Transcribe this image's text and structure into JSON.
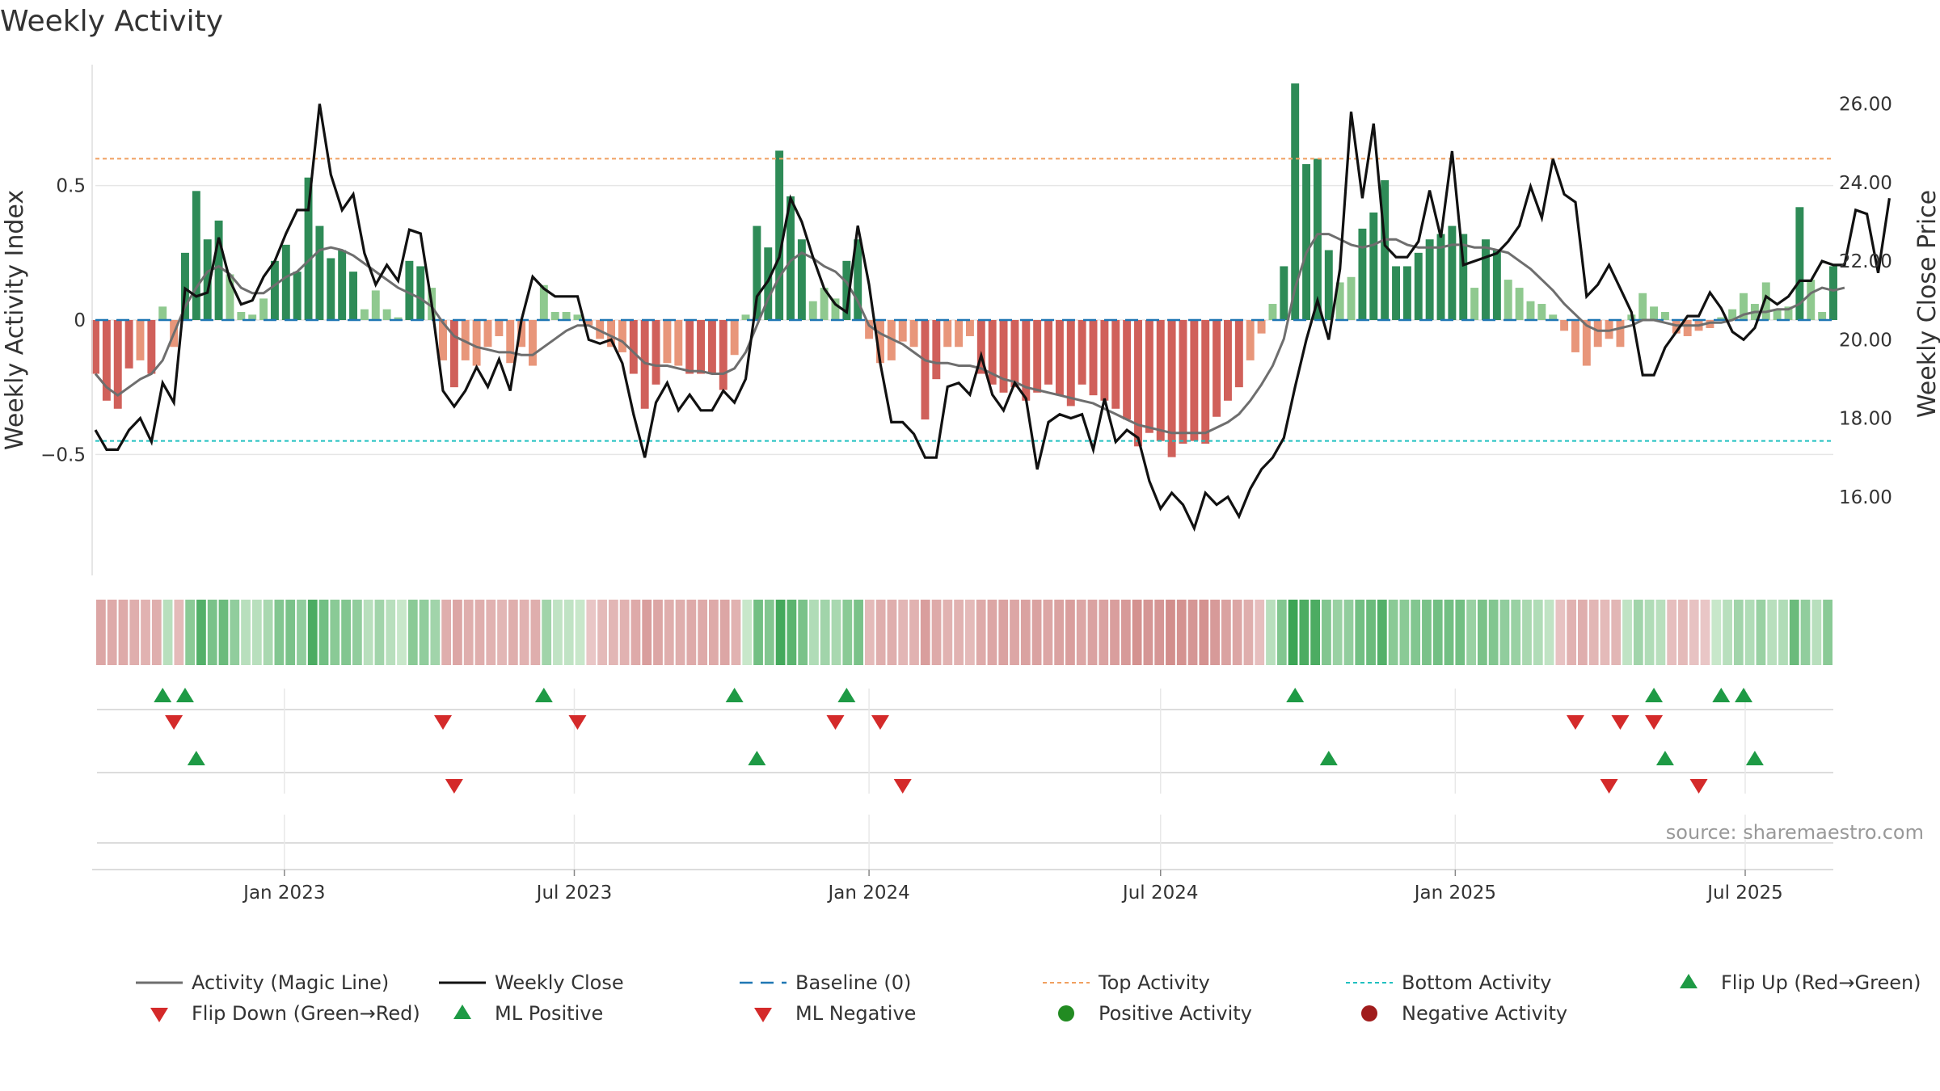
{
  "title": "Weekly Activity",
  "source": "source: sharemaestro.com",
  "colors": {
    "bar_pos_strong": "#2e8b57",
    "bar_pos_light": "#8fc98f",
    "bar_neg_strong": "#d0605a",
    "bar_neg_light": "#e8967a",
    "magic_line": "#6e6e6e",
    "close_line": "#111111",
    "baseline": "#1f77b4",
    "top_line": "#f0a060",
    "bottom_line": "#20c0c0",
    "flip_up": "#1e9a45",
    "flip_down": "#d42a2a",
    "positive": "#228b22",
    "negative": "#a01c1c"
  },
  "chart_data": {
    "type": "bar",
    "title": "Weekly Activity",
    "ylabel": "Weekly Activity Index",
    "y2label": "Weekly Close Price",
    "ylim": [
      -0.95,
      0.95
    ],
    "y2lim": [
      14.0,
      27.0
    ],
    "yticks": [
      {
        "v": 0.5,
        "label": "0.5"
      },
      {
        "v": 0,
        "label": "0"
      },
      {
        "v": -0.5,
        "label": "−0.5"
      }
    ],
    "y2ticks": [
      {
        "v": 26,
        "label": "26.00"
      },
      {
        "v": 24,
        "label": "24.00"
      },
      {
        "v": 22,
        "label": "22.00"
      },
      {
        "v": 20,
        "label": "20.00"
      },
      {
        "v": 18,
        "label": "18.00"
      },
      {
        "v": 16,
        "label": "16.00"
      }
    ],
    "x_start": "2022-09-05",
    "x_end": "2025-08-25",
    "xticks": [
      {
        "date": "2023-01-01",
        "label": "Jan 2023"
      },
      {
        "date": "2023-07-01",
        "label": "Jul 2023"
      },
      {
        "date": "2024-01-01",
        "label": "Jan 2024"
      },
      {
        "date": "2024-07-01",
        "label": "Jul 2024"
      },
      {
        "date": "2025-01-01",
        "label": "Jan 2025"
      },
      {
        "date": "2025-07-01",
        "label": "Jul 2025"
      }
    ],
    "top_activity": 0.6,
    "bottom_activity": -0.45,
    "grid": true,
    "activity": [
      -0.2,
      -0.3,
      -0.33,
      -0.18,
      -0.15,
      -0.2,
      0.05,
      -0.1,
      0.25,
      0.48,
      0.3,
      0.37,
      0.17,
      0.03,
      0.02,
      0.08,
      0.22,
      0.28,
      0.18,
      0.53,
      0.35,
      0.23,
      0.26,
      0.18,
      0.04,
      0.11,
      0.04,
      0.01,
      0.22,
      0.2,
      0.12,
      -0.15,
      -0.25,
      -0.15,
      -0.17,
      -0.1,
      -0.06,
      -0.16,
      -0.1,
      -0.17,
      0.13,
      0.03,
      0.03,
      0.02,
      -0.02,
      -0.07,
      -0.1,
      -0.12,
      -0.2,
      -0.33,
      -0.24,
      -0.16,
      -0.17,
      -0.2,
      -0.2,
      -0.2,
      -0.26,
      -0.13,
      0.02,
      0.35,
      0.27,
      0.63,
      0.46,
      0.3,
      0.07,
      0.12,
      0.08,
      0.22,
      0.3,
      -0.07,
      -0.16,
      -0.15,
      -0.08,
      -0.1,
      -0.37,
      -0.22,
      -0.1,
      -0.1,
      -0.06,
      -0.2,
      -0.24,
      -0.27,
      -0.25,
      -0.3,
      -0.27,
      -0.24,
      -0.28,
      -0.32,
      -0.24,
      -0.28,
      -0.3,
      -0.33,
      -0.37,
      -0.47,
      -0.42,
      -0.45,
      -0.51,
      -0.46,
      -0.45,
      -0.46,
      -0.36,
      -0.3,
      -0.25,
      -0.15,
      -0.05,
      0.06,
      0.2,
      0.88,
      0.58,
      0.6,
      0.26,
      0.14,
      0.16,
      0.34,
      0.4,
      0.52,
      0.2,
      0.2,
      0.25,
      0.3,
      0.32,
      0.35,
      0.32,
      0.12,
      0.3,
      0.26,
      0.15,
      0.12,
      0.07,
      0.06,
      0.02,
      -0.04,
      -0.12,
      -0.17,
      -0.1,
      -0.07,
      -0.1,
      0.02,
      0.1,
      0.05,
      0.03,
      -0.05,
      -0.06,
      -0.04,
      -0.03,
      0.01,
      0.04,
      0.1,
      0.06,
      0.14,
      0.04,
      0.05,
      0.42,
      0.15,
      0.03,
      0.2
    ],
    "magic_line": [
      -0.2,
      -0.25,
      -0.28,
      -0.25,
      -0.22,
      -0.2,
      -0.15,
      -0.05,
      0.05,
      0.12,
      0.18,
      0.2,
      0.17,
      0.12,
      0.1,
      0.1,
      0.13,
      0.16,
      0.18,
      0.22,
      0.26,
      0.27,
      0.26,
      0.24,
      0.21,
      0.18,
      0.15,
      0.12,
      0.1,
      0.08,
      0.05,
      -0.01,
      -0.06,
      -0.08,
      -0.1,
      -0.11,
      -0.12,
      -0.12,
      -0.13,
      -0.13,
      -0.1,
      -0.07,
      -0.04,
      -0.02,
      -0.02,
      -0.04,
      -0.06,
      -0.08,
      -0.12,
      -0.16,
      -0.17,
      -0.17,
      -0.18,
      -0.19,
      -0.19,
      -0.2,
      -0.2,
      -0.18,
      -0.12,
      -0.02,
      0.08,
      0.16,
      0.22,
      0.25,
      0.23,
      0.2,
      0.18,
      0.14,
      0.07,
      -0.02,
      -0.05,
      -0.07,
      -0.09,
      -0.12,
      -0.15,
      -0.16,
      -0.16,
      -0.17,
      -0.17,
      -0.18,
      -0.2,
      -0.22,
      -0.23,
      -0.25,
      -0.26,
      -0.27,
      -0.28,
      -0.29,
      -0.3,
      -0.31,
      -0.33,
      -0.35,
      -0.37,
      -0.39,
      -0.4,
      -0.41,
      -0.42,
      -0.42,
      -0.42,
      -0.42,
      -0.4,
      -0.38,
      -0.35,
      -0.3,
      -0.24,
      -0.17,
      -0.07,
      0.12,
      0.25,
      0.32,
      0.32,
      0.3,
      0.28,
      0.27,
      0.28,
      0.3,
      0.3,
      0.28,
      0.27,
      0.27,
      0.27,
      0.28,
      0.28,
      0.27,
      0.27,
      0.26,
      0.25,
      0.22,
      0.19,
      0.15,
      0.11,
      0.06,
      0.02,
      -0.02,
      -0.04,
      -0.04,
      -0.03,
      -0.02,
      0.0,
      0.0,
      -0.01,
      -0.02,
      -0.02,
      -0.02,
      -0.01,
      -0.01,
      0.0,
      0.02,
      0.03,
      0.03,
      0.04,
      0.04,
      0.06,
      0.1,
      0.12,
      0.11,
      0.12
    ],
    "weekly_close": [
      17.7,
      17.2,
      17.2,
      17.7,
      18.0,
      17.4,
      18.9,
      18.4,
      21.3,
      21.1,
      21.2,
      22.6,
      21.5,
      20.9,
      21.0,
      21.6,
      22.0,
      22.7,
      23.3,
      23.3,
      26.0,
      24.2,
      23.3,
      23.7,
      22.2,
      21.4,
      21.9,
      21.5,
      22.8,
      22.7,
      20.9,
      18.7,
      18.3,
      18.7,
      19.3,
      18.8,
      19.5,
      18.7,
      20.5,
      21.6,
      21.3,
      21.1,
      21.1,
      21.1,
      20.0,
      19.9,
      20.0,
      19.4,
      18.1,
      17.0,
      18.4,
      18.9,
      18.2,
      18.6,
      18.2,
      18.2,
      18.7,
      18.4,
      19.0,
      21.1,
      21.5,
      22.1,
      23.6,
      23.0,
      22.1,
      21.3,
      20.9,
      20.7,
      22.9,
      21.4,
      19.4,
      17.9,
      17.9,
      17.6,
      17.0,
      17.0,
      18.8,
      18.9,
      18.6,
      19.6,
      18.6,
      18.2,
      18.9,
      18.5,
      16.7,
      17.9,
      18.1,
      18.0,
      18.1,
      17.2,
      18.5,
      17.4,
      17.7,
      17.5,
      16.4,
      15.7,
      16.1,
      15.8,
      15.2,
      16.1,
      15.8,
      16.0,
      15.5,
      16.2,
      16.7,
      17.0,
      17.5,
      18.8,
      20.0,
      21.0,
      20.0,
      21.8,
      25.8,
      23.6,
      25.5,
      22.4,
      22.1,
      22.1,
      22.5,
      23.8,
      22.6,
      24.8,
      21.9,
      22.0,
      22.1,
      22.2,
      22.5,
      22.9,
      23.9,
      23.1,
      24.6,
      23.7,
      23.5,
      21.1,
      21.4,
      21.9,
      21.3,
      20.7,
      19.1,
      19.1,
      19.8,
      20.2,
      20.6,
      20.6,
      21.2,
      20.8,
      20.2,
      20.0,
      20.3,
      21.1,
      20.9,
      21.1,
      21.5,
      21.5,
      22.0,
      21.9,
      21.9,
      23.3,
      23.2,
      21.7,
      23.6
    ],
    "heat_level": [
      -0.55,
      -0.5,
      -0.5,
      -0.45,
      -0.4,
      -0.45,
      0.2,
      -0.3,
      0.5,
      0.85,
      0.6,
      0.7,
      0.45,
      0.2,
      0.2,
      0.3,
      0.55,
      0.6,
      0.45,
      0.9,
      0.65,
      0.5,
      0.55,
      0.45,
      0.2,
      0.35,
      0.2,
      0.1,
      0.5,
      0.45,
      0.35,
      -0.45,
      -0.55,
      -0.45,
      -0.45,
      -0.4,
      -0.35,
      -0.45,
      -0.4,
      -0.45,
      0.35,
      0.15,
      0.15,
      0.1,
      -0.15,
      -0.3,
      -0.35,
      -0.4,
      -0.5,
      -0.65,
      -0.55,
      -0.45,
      -0.45,
      -0.5,
      -0.5,
      -0.5,
      -0.55,
      -0.4,
      0.1,
      0.65,
      0.55,
      0.95,
      0.8,
      0.6,
      0.25,
      0.35,
      0.3,
      0.5,
      0.6,
      -0.3,
      -0.45,
      -0.45,
      -0.35,
      -0.4,
      -0.65,
      -0.5,
      -0.4,
      -0.4,
      -0.3,
      -0.5,
      -0.55,
      -0.6,
      -0.55,
      -0.6,
      -0.6,
      -0.55,
      -0.6,
      -0.65,
      -0.55,
      -0.6,
      -0.6,
      -0.65,
      -0.7,
      -0.8,
      -0.75,
      -0.75,
      -0.85,
      -0.8,
      -0.75,
      -0.8,
      -0.7,
      -0.6,
      -0.55,
      -0.45,
      -0.25,
      0.2,
      0.55,
      1.0,
      0.9,
      0.9,
      0.55,
      0.4,
      0.45,
      0.65,
      0.7,
      0.85,
      0.5,
      0.5,
      0.55,
      0.6,
      0.65,
      0.65,
      0.65,
      0.4,
      0.6,
      0.55,
      0.45,
      0.4,
      0.3,
      0.25,
      0.15,
      -0.2,
      -0.4,
      -0.45,
      -0.35,
      -0.3,
      -0.35,
      0.15,
      0.35,
      0.25,
      0.2,
      -0.25,
      -0.3,
      -0.2,
      -0.15,
      0.1,
      0.2,
      0.35,
      0.25,
      0.4,
      0.2,
      0.25,
      0.7,
      0.45,
      0.2,
      0.5
    ],
    "signals": [
      {
        "row": "flip",
        "kind": "up",
        "weeks": [
          6,
          8,
          40,
          57,
          67,
          107,
          139,
          145,
          147
        ]
      },
      {
        "row": "flip",
        "kind": "down",
        "weeks": [
          7,
          31,
          43,
          66,
          70,
          132,
          136,
          139
        ]
      },
      {
        "row": "ml",
        "kind": "up",
        "weeks": [
          9,
          59,
          110,
          140,
          148
        ]
      },
      {
        "row": "ml",
        "kind": "down",
        "weeks": [
          32,
          72,
          135,
          143
        ]
      }
    ],
    "legend": [
      {
        "key": "magic",
        "label": "Activity (Magic Line)"
      },
      {
        "key": "close",
        "label": "Weekly Close"
      },
      {
        "key": "baseline",
        "label": "Baseline (0)"
      },
      {
        "key": "top",
        "label": "Top Activity"
      },
      {
        "key": "bottom",
        "label": "Bottom Activity"
      },
      {
        "key": "flipup",
        "label": "Flip Up (Red→Green)"
      },
      {
        "key": "flipdown",
        "label": "Flip Down (Green→Red)"
      },
      {
        "key": "mlpos",
        "label": "ML Positive"
      },
      {
        "key": "mlneg",
        "label": "ML Negative"
      },
      {
        "key": "posact",
        "label": "Positive Activity"
      },
      {
        "key": "negact",
        "label": "Negative Activity"
      }
    ]
  }
}
